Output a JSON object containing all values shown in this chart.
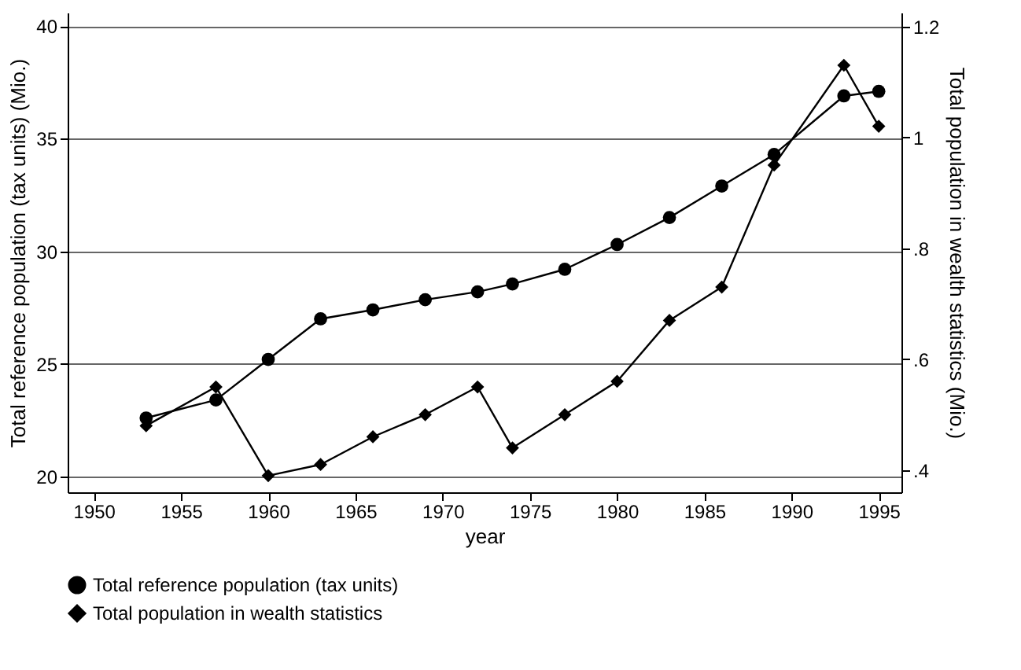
{
  "chart_data": {
    "type": "line",
    "xlabel": "year",
    "ylabel": "Total reference population (tax units) (Mio.)",
    "y2label": "Total population in wealth statistics (Mio.)",
    "x": [
      1953,
      1957,
      1960,
      1963,
      1966,
      1969,
      1972,
      1974,
      1977,
      1980,
      1983,
      1986,
      1989,
      1993,
      1995
    ],
    "series": [
      {
        "name": "Total reference population (tax units)",
        "color": "#000000",
        "marker": "circle",
        "values": [
          22.6,
          23.4,
          25.2,
          27.0,
          27.4,
          27.85,
          28.2,
          28.55,
          29.2,
          30.3,
          31.5,
          32.9,
          34.3,
          36.9,
          37.1
        ]
      },
      {
        "name": "Total population in wealth statistics",
        "color": "#000000",
        "marker": "diamond",
        "axis": "y2",
        "values": [
          0.48,
          0.55,
          0.39,
          0.41,
          0.46,
          0.5,
          0.55,
          0.44,
          0.5,
          0.56,
          0.67,
          0.73,
          0.95,
          1.13,
          1.02
        ]
      }
    ],
    "xlim": [
      1948.5,
      1996.3
    ],
    "xticks": [
      1950,
      1955,
      1960,
      1965,
      1970,
      1975,
      1980,
      1985,
      1990,
      1995
    ],
    "ylim": [
      19.3,
      40.6
    ],
    "yticks": [
      20,
      25,
      30,
      35,
      40
    ],
    "y2lim": [
      0.36,
      1.225
    ],
    "y2ticks": [
      {
        "value": 0.4,
        "label": ".4"
      },
      {
        "value": 0.6,
        "label": ".6"
      },
      {
        "value": 0.8,
        "label": ".8"
      },
      {
        "value": 1,
        "label": "1"
      },
      {
        "value": 1.2,
        "label": "1.2"
      }
    ],
    "grid": "y",
    "legend": "bottom",
    "line_style": "solid"
  }
}
